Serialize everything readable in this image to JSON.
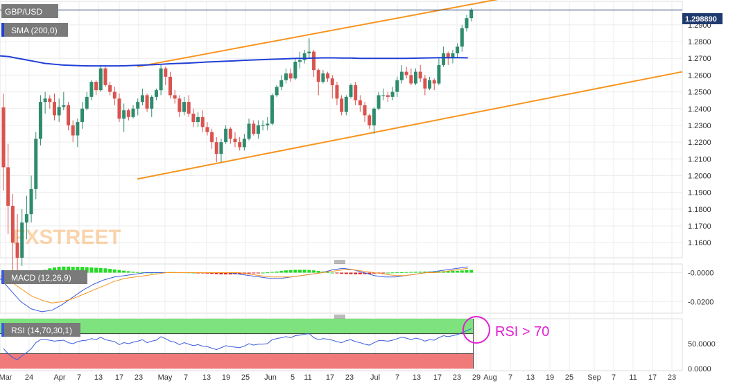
{
  "symbol": "GBP/USD",
  "indicators": {
    "sma_label": "SMA (200,0)",
    "macd_label": "MACD (12,26,9)",
    "rsi_label": "RSI (14,70,30,1)",
    "rsi_annotation": "RSI > 70"
  },
  "watermark": "FXSTREET",
  "current_price_label": "1.298890",
  "colors": {
    "up": "#2e8b6e",
    "down": "#d9534f",
    "sma": "#1f3fd6",
    "trend_channel": "#f7941d",
    "macd_line": "#3b5bdb",
    "signal_line": "#f7941d",
    "hist_up": "#22dd22",
    "hist_down": "#dd2222",
    "rsi_overbought": "#7ee27e",
    "rsi_oversold": "#f07a7a",
    "annotation": "#e020d0"
  },
  "chart_data": {
    "type": "candlestick",
    "main_ylim": [
      1.151,
      1.304
    ],
    "price_ticks": [
      "1.2900",
      "1.2800",
      "1.2700",
      "1.2600",
      "1.2500",
      "1.2400",
      "1.2300",
      "1.2200",
      "1.2100",
      "1.2000",
      "1.1900",
      "1.1800",
      "1.1700",
      "1.1600"
    ],
    "x_ticks": [
      "Mar",
      "24",
      "Apr",
      "7",
      "13",
      "17",
      "23",
      "May",
      "7",
      "13",
      "19",
      "25",
      "Jun",
      "5",
      "11",
      "17",
      "23",
      "Jul",
      "7",
      "13",
      "17",
      "23",
      "29",
      "Aug",
      "7",
      "13",
      "19",
      "25",
      "Sep",
      "7",
      "11",
      "17",
      "23"
    ],
    "macd_ticks": [
      "-0.0000",
      "-0.0200"
    ],
    "rsi_ticks": [
      "50.0000",
      "0.0000"
    ],
    "last_price": 1.29889,
    "sma200_level": 1.27,
    "upper_channel_from_to": [
      1.265,
      1.31
    ],
    "lower_channel_from_to": [
      1.198,
      1.262
    ],
    "candles": [
      [
        1.2407,
        1.249,
        1.191,
        1.205
      ],
      [
        1.205,
        1.219,
        1.165,
        1.182
      ],
      [
        1.182,
        1.189,
        1.141,
        1.16
      ],
      [
        1.16,
        1.177,
        1.141,
        1.151
      ],
      [
        1.151,
        1.18,
        1.146,
        1.172
      ],
      [
        1.172,
        1.188,
        1.162,
        1.177
      ],
      [
        1.177,
        1.2,
        1.172,
        1.192
      ],
      [
        1.192,
        1.226,
        1.186,
        1.222
      ],
      [
        1.222,
        1.248,
        1.218,
        1.244
      ],
      [
        1.244,
        1.25,
        1.237,
        1.246
      ],
      [
        1.246,
        1.248,
        1.24,
        1.244
      ],
      [
        1.244,
        1.249,
        1.233,
        1.236
      ],
      [
        1.236,
        1.246,
        1.232,
        1.241
      ],
      [
        1.241,
        1.25,
        1.239,
        1.242
      ],
      [
        1.242,
        1.244,
        1.227,
        1.23
      ],
      [
        1.23,
        1.233,
        1.22,
        1.224
      ],
      [
        1.224,
        1.234,
        1.217,
        1.232
      ],
      [
        1.232,
        1.244,
        1.228,
        1.24
      ],
      [
        1.24,
        1.25,
        1.239,
        1.247
      ],
      [
        1.247,
        1.257,
        1.245,
        1.256
      ],
      [
        1.256,
        1.257,
        1.248,
        1.251
      ],
      [
        1.251,
        1.266,
        1.25,
        1.264
      ],
      [
        1.264,
        1.265,
        1.253,
        1.254
      ],
      [
        1.254,
        1.256,
        1.248,
        1.25
      ],
      [
        1.25,
        1.253,
        1.242,
        1.246
      ],
      [
        1.246,
        1.249,
        1.232,
        1.234
      ],
      [
        1.234,
        1.243,
        1.226,
        1.239
      ],
      [
        1.239,
        1.24,
        1.233,
        1.235
      ],
      [
        1.235,
        1.242,
        1.234,
        1.24
      ],
      [
        1.24,
        1.246,
        1.236,
        1.244
      ],
      [
        1.244,
        1.252,
        1.242,
        1.248
      ],
      [
        1.248,
        1.249,
        1.238,
        1.24
      ],
      [
        1.24,
        1.248,
        1.235,
        1.247
      ],
      [
        1.247,
        1.252,
        1.245,
        1.251
      ],
      [
        1.251,
        1.266,
        1.248,
        1.264
      ],
      [
        1.264,
        1.265,
        1.254,
        1.259
      ],
      [
        1.259,
        1.262,
        1.246,
        1.248
      ],
      [
        1.248,
        1.251,
        1.243,
        1.246
      ],
      [
        1.246,
        1.248,
        1.235,
        1.238
      ],
      [
        1.238,
        1.247,
        1.236,
        1.244
      ],
      [
        1.244,
        1.248,
        1.235,
        1.237
      ],
      [
        1.237,
        1.24,
        1.229,
        1.232
      ],
      [
        1.232,
        1.238,
        1.229,
        1.235
      ],
      [
        1.235,
        1.239,
        1.226,
        1.229
      ],
      [
        1.229,
        1.232,
        1.224,
        1.226
      ],
      [
        1.226,
        1.228,
        1.216,
        1.22
      ],
      [
        1.22,
        1.223,
        1.208,
        1.213
      ],
      [
        1.213,
        1.222,
        1.208,
        1.22
      ],
      [
        1.22,
        1.23,
        1.219,
        1.228
      ],
      [
        1.228,
        1.229,
        1.219,
        1.222
      ],
      [
        1.222,
        1.226,
        1.217,
        1.22
      ],
      [
        1.22,
        1.223,
        1.215,
        1.217
      ],
      [
        1.217,
        1.225,
        1.215,
        1.222
      ],
      [
        1.222,
        1.234,
        1.221,
        1.231
      ],
      [
        1.231,
        1.233,
        1.224,
        1.225
      ],
      [
        1.225,
        1.233,
        1.222,
        1.23
      ],
      [
        1.23,
        1.233,
        1.227,
        1.23
      ],
      [
        1.23,
        1.235,
        1.227,
        1.231
      ],
      [
        1.231,
        1.249,
        1.23,
        1.248
      ],
      [
        1.248,
        1.254,
        1.247,
        1.253
      ],
      [
        1.253,
        1.26,
        1.251,
        1.257
      ],
      [
        1.257,
        1.264,
        1.255,
        1.261
      ],
      [
        1.261,
        1.264,
        1.256,
        1.258
      ],
      [
        1.258,
        1.27,
        1.257,
        1.268
      ],
      [
        1.268,
        1.274,
        1.264,
        1.269
      ],
      [
        1.269,
        1.275,
        1.267,
        1.273
      ],
      [
        1.273,
        1.282,
        1.27,
        1.274
      ],
      [
        1.274,
        1.275,
        1.259,
        1.263
      ],
      [
        1.263,
        1.264,
        1.248,
        1.256
      ],
      [
        1.256,
        1.263,
        1.255,
        1.261
      ],
      [
        1.261,
        1.262,
        1.256,
        1.258
      ],
      [
        1.258,
        1.26,
        1.246,
        1.254
      ],
      [
        1.254,
        1.256,
        1.242,
        1.246
      ],
      [
        1.246,
        1.248,
        1.236,
        1.238
      ],
      [
        1.238,
        1.248,
        1.236,
        1.247
      ],
      [
        1.247,
        1.255,
        1.246,
        1.254
      ],
      [
        1.254,
        1.256,
        1.242,
        1.245
      ],
      [
        1.245,
        1.248,
        1.238,
        1.242
      ],
      [
        1.242,
        1.244,
        1.232,
        1.236
      ],
      [
        1.236,
        1.237,
        1.228,
        1.23
      ],
      [
        1.23,
        1.241,
        1.225,
        1.24
      ],
      [
        1.24,
        1.25,
        1.239,
        1.248
      ],
      [
        1.248,
        1.252,
        1.245,
        1.248
      ],
      [
        1.248,
        1.25,
        1.244,
        1.247
      ],
      [
        1.247,
        1.253,
        1.245,
        1.25
      ],
      [
        1.25,
        1.259,
        1.247,
        1.257
      ],
      [
        1.257,
        1.266,
        1.255,
        1.262
      ],
      [
        1.262,
        1.265,
        1.258,
        1.26
      ],
      [
        1.26,
        1.264,
        1.254,
        1.255
      ],
      [
        1.255,
        1.264,
        1.254,
        1.262
      ],
      [
        1.262,
        1.266,
        1.256,
        1.258
      ],
      [
        1.258,
        1.26,
        1.248,
        1.252
      ],
      [
        1.252,
        1.259,
        1.251,
        1.257
      ],
      [
        1.257,
        1.258,
        1.251,
        1.255
      ],
      [
        1.255,
        1.27,
        1.254,
        1.266
      ],
      [
        1.266,
        1.277,
        1.265,
        1.273
      ],
      [
        1.273,
        1.274,
        1.266,
        1.27
      ],
      [
        1.27,
        1.275,
        1.267,
        1.273
      ],
      [
        1.273,
        1.279,
        1.27,
        1.277
      ],
      [
        1.277,
        1.29,
        1.274,
        1.288
      ],
      [
        1.288,
        1.296,
        1.286,
        1.294
      ],
      [
        1.294,
        1.3,
        1.292,
        1.2989
      ]
    ],
    "macd_histogram": [
      -0.0052,
      -0.006,
      -0.0058,
      -0.005,
      -0.0042,
      -0.0032,
      -0.002,
      -0.0006,
      0.0008,
      0.002,
      0.003,
      0.0036,
      0.004,
      0.0042,
      0.0042,
      0.004,
      0.004,
      0.004,
      0.0038,
      0.0036,
      0.0034,
      0.0032,
      0.003,
      0.0026,
      0.0022,
      0.0018,
      0.0014,
      0.001,
      0.0006,
      0.0004,
      0.0002,
      0.0001,
      0.0,
      0.0001,
      0.0002,
      0.0003,
      0.0004,
      0.0004,
      0.0003,
      0.0002,
      0.0001,
      0.0,
      -0.0002,
      -0.0004,
      -0.0006,
      -0.0008,
      -0.001,
      -0.0012,
      -0.0012,
      -0.0012,
      -0.0011,
      -0.001,
      -0.0008,
      -0.0006,
      -0.0004,
      -0.0002,
      0.0,
      0.0002,
      0.0005,
      0.0008,
      0.0012,
      0.0016,
      0.0018,
      0.002,
      0.002,
      0.002,
      0.0018,
      0.0016,
      0.0012,
      0.0008,
      0.0004,
      0.0,
      -0.0004,
      -0.0007,
      -0.0009,
      -0.001,
      -0.0011,
      -0.0011,
      -0.001,
      -0.0008,
      -0.0006,
      -0.0004,
      -0.0002,
      0.0,
      0.0001,
      0.0002,
      0.0003,
      0.0004,
      0.0005,
      0.0006,
      0.0007,
      0.0008,
      0.0008,
      0.0008,
      0.0009,
      0.001,
      0.0011,
      0.0012,
      0.0013,
      0.0015,
      0.0017,
      0.0019
    ],
    "macd_ylim": [
      -0.028,
      0.006
    ],
    "rsi": [
      40,
      30,
      22,
      18,
      26,
      32,
      40,
      52,
      58,
      58,
      57,
      55,
      56,
      57,
      52,
      50,
      54,
      56,
      57,
      60,
      58,
      63,
      58,
      56,
      54,
      48,
      52,
      50,
      53,
      55,
      58,
      52,
      55,
      57,
      64,
      60,
      55,
      53,
      48,
      52,
      49,
      46,
      48,
      45,
      44,
      41,
      38,
      42,
      46,
      44,
      43,
      42,
      45,
      50,
      47,
      49,
      49,
      50,
      58,
      60,
      62,
      64,
      62,
      66,
      67,
      69,
      70,
      62,
      58,
      60,
      59,
      57,
      54,
      52,
      56,
      58,
      54,
      52,
      49,
      47,
      52,
      56,
      56,
      55,
      57,
      60,
      63,
      61,
      58,
      61,
      59,
      55,
      58,
      57,
      62,
      66,
      64,
      66,
      68,
      72,
      76,
      80
    ],
    "rsi_ylim": [
      0,
      100
    ]
  }
}
